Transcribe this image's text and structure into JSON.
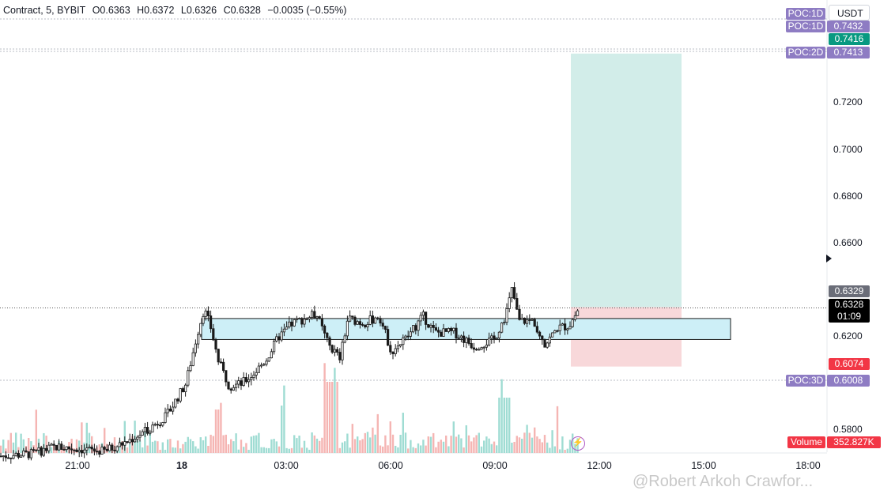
{
  "header": {
    "symbol": "Contract, 5, BYBIT",
    "open": "O0.6363",
    "high": "H0.6372",
    "low": "L0.6326",
    "close": "C0.6328",
    "change": "−0.0035 (−0.55%)"
  },
  "currency": "USDT",
  "price_axis": {
    "ticks": [
      "0.7200",
      "0.7000",
      "0.6800",
      "0.6600",
      "0.6200",
      "0.5800"
    ],
    "tick_values": [
      0.72,
      0.7,
      0.68,
      0.66,
      0.62,
      0.58
    ]
  },
  "time_axis": {
    "labels": [
      "21:00",
      "18",
      "03:00",
      "06:00",
      "09:00",
      "12:00",
      "15:00",
      "18:00"
    ]
  },
  "price_tags": {
    "target": "0.7416",
    "entry": "0.6329",
    "last": "0.6328",
    "countdown": "01:09",
    "stop": "0.6074",
    "volume_label": "Volume",
    "volume_value": "352.827K"
  },
  "poc_tags": [
    {
      "label": "POC:1D",
      "value": ""
    },
    {
      "label": "POC:1D",
      "value": "0.7432"
    },
    {
      "label": "POC:2D",
      "value": "0.7413"
    },
    {
      "label": "POC:3D",
      "value": "0.6008"
    }
  ],
  "watermark": "@Robert Arkoh Crawfor...",
  "colors": {
    "up": "#26a69a",
    "down": "#ef5350",
    "zone_fill": "#cdeff7",
    "profit_fill": "#d2ede9",
    "loss_fill": "#f8d8da",
    "poc": "#8e7cc3",
    "target_tag": "#089981",
    "stop_tag": "#f23645"
  },
  "chart_data": {
    "type": "candlestick",
    "timeframe": "5",
    "exchange": "BYBIT",
    "y_range": [
      0.57,
      0.76
    ],
    "consolidation_zone": [
      0.619,
      0.628
    ],
    "position": {
      "entry": 0.6329,
      "target": 0.7416,
      "stop": 0.6074
    },
    "poc_levels": {
      "POC:1D": 0.7432,
      "POC:2D": 0.7413,
      "POC:3D": 0.6008
    },
    "price_path": [
      [
        0,
        0.569
      ],
      [
        40,
        0.57
      ],
      [
        70,
        0.573
      ],
      [
        100,
        0.572
      ],
      [
        130,
        0.571
      ],
      [
        160,
        0.575
      ],
      [
        185,
        0.58
      ],
      [
        210,
        0.586
      ],
      [
        235,
        0.6
      ],
      [
        250,
        0.622
      ],
      [
        258,
        0.632
      ],
      [
        266,
        0.625
      ],
      [
        276,
        0.61
      ],
      [
        290,
        0.599
      ],
      [
        305,
        0.6
      ],
      [
        320,
        0.604
      ],
      [
        338,
        0.611
      ],
      [
        352,
        0.62
      ],
      [
        370,
        0.626
      ],
      [
        400,
        0.63
      ],
      [
        415,
        0.617
      ],
      [
        430,
        0.611
      ],
      [
        440,
        0.628
      ],
      [
        460,
        0.626
      ],
      [
        480,
        0.629
      ],
      [
        495,
        0.614
      ],
      [
        515,
        0.62
      ],
      [
        535,
        0.629
      ],
      [
        550,
        0.622
      ],
      [
        575,
        0.622
      ],
      [
        600,
        0.616
      ],
      [
        625,
        0.619
      ],
      [
        640,
        0.63
      ],
      [
        648,
        0.641
      ],
      [
        656,
        0.627
      ],
      [
        675,
        0.627
      ],
      [
        690,
        0.617
      ],
      [
        705,
        0.624
      ],
      [
        720,
        0.625
      ],
      [
        733,
        0.6328
      ]
    ]
  }
}
